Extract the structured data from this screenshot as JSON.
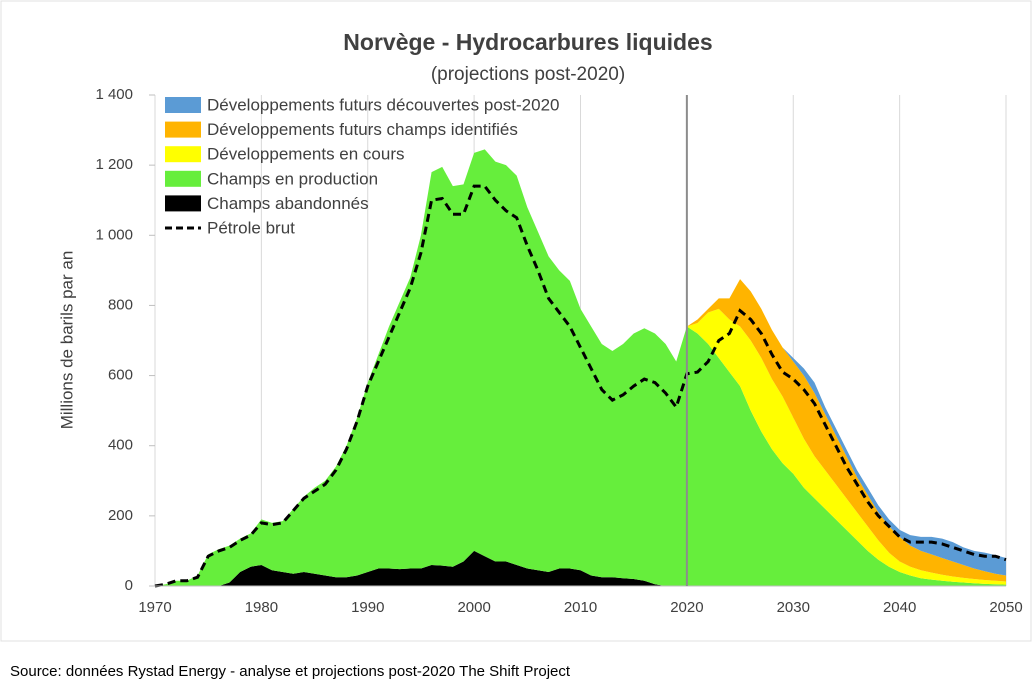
{
  "chart_data": {
    "type": "stacked_area",
    "title": "Norvège - Hydrocarbures liquides",
    "subtitle": "(projections post-2020)",
    "y_label": "Millions de barils par an",
    "source": "Source: données Rystad Energy - analyse et projections post-2020  The Shift Project",
    "xlim": [
      1970,
      2050
    ],
    "xticks": [
      1970,
      1980,
      1990,
      2000,
      2010,
      2020,
      2030,
      2040,
      2050
    ],
    "ylim": [
      0,
      1400
    ],
    "yticks": [
      0,
      200,
      400,
      600,
      800,
      {
        "value": 1000,
        "label": "1 000"
      },
      {
        "value": 1200,
        "label": "1 200"
      },
      {
        "value": 1400,
        "label": "1 400"
      }
    ],
    "grid": "x",
    "vline": 2020,
    "legend": "upper left",
    "x": [
      1970,
      1971,
      1972,
      1973,
      1974,
      1975,
      1976,
      1977,
      1978,
      1979,
      1980,
      1981,
      1982,
      1983,
      1984,
      1985,
      1986,
      1987,
      1988,
      1989,
      1990,
      1991,
      1992,
      1993,
      1994,
      1995,
      1996,
      1997,
      1998,
      1999,
      2000,
      2001,
      2002,
      2003,
      2004,
      2005,
      2006,
      2007,
      2008,
      2009,
      2010,
      2011,
      2012,
      2013,
      2014,
      2015,
      2016,
      2017,
      2018,
      2019,
      2020,
      2021,
      2022,
      2023,
      2024,
      2025,
      2026,
      2027,
      2028,
      2029,
      2030,
      2031,
      2032,
      2033,
      2034,
      2035,
      2036,
      2037,
      2038,
      2039,
      2040,
      2041,
      2042,
      2043,
      2044,
      2045,
      2046,
      2047,
      2048,
      2049,
      2050
    ],
    "series": [
      {
        "name": "Champs abandonnés",
        "color": "#000000",
        "values": [
          0,
          0,
          0,
          0,
          0,
          0,
          0,
          10,
          40,
          55,
          60,
          45,
          40,
          35,
          40,
          35,
          30,
          25,
          25,
          30,
          40,
          50,
          50,
          48,
          50,
          50,
          60,
          58,
          55,
          70,
          100,
          85,
          70,
          70,
          60,
          50,
          45,
          40,
          50,
          50,
          45,
          30,
          25,
          25,
          22,
          20,
          15,
          5,
          0,
          null,
          null,
          null,
          null,
          null,
          null,
          null,
          null,
          null,
          null,
          null,
          null,
          null,
          null,
          null,
          null,
          null,
          null,
          null,
          null,
          null,
          null,
          null,
          null,
          null,
          null,
          null,
          null,
          null,
          null,
          null,
          null
        ]
      },
      {
        "name": "Champs en production",
        "color": "#66ee3c",
        "values": [
          0,
          5,
          15,
          15,
          30,
          90,
          105,
          105,
          95,
          95,
          130,
          135,
          145,
          185,
          215,
          245,
          270,
          315,
          375,
          450,
          540,
          610,
          690,
          762,
          830,
          950,
          1120,
          1137,
          1085,
          1075,
          1135,
          1160,
          1140,
          1130,
          1110,
          1030,
          965,
          900,
          850,
          820,
          745,
          710,
          665,
          645,
          668,
          700,
          720,
          715,
          690,
          640,
          740,
          720,
          690,
          650,
          610,
          570,
          500,
          440,
          390,
          350,
          320,
          280,
          250,
          220,
          190,
          160,
          130,
          100,
          75,
          55,
          40,
          30,
          22,
          18,
          15,
          12,
          10,
          8,
          6,
          5,
          4
        ]
      },
      {
        "name": "Développements en cours",
        "color": "#ffff00",
        "values": [
          null,
          null,
          null,
          null,
          null,
          null,
          null,
          null,
          null,
          null,
          null,
          null,
          null,
          null,
          null,
          null,
          null,
          null,
          null,
          null,
          null,
          null,
          null,
          null,
          null,
          null,
          null,
          null,
          null,
          null,
          null,
          null,
          null,
          null,
          null,
          null,
          null,
          null,
          null,
          null,
          null,
          null,
          null,
          null,
          null,
          null,
          null,
          null,
          null,
          null,
          0,
          30,
          90,
          140,
          150,
          170,
          200,
          210,
          200,
          190,
          160,
          140,
          120,
          110,
          100,
          90,
          80,
          70,
          55,
          40,
          30,
          25,
          23,
          20,
          17,
          15,
          13,
          12,
          11,
          10,
          9
        ]
      },
      {
        "name": "Développements futurs champs identifiés",
        "color": "#ffb400",
        "values": [
          null,
          null,
          null,
          null,
          null,
          null,
          null,
          null,
          null,
          null,
          null,
          null,
          null,
          null,
          null,
          null,
          null,
          null,
          null,
          null,
          null,
          null,
          null,
          null,
          null,
          null,
          null,
          null,
          null,
          null,
          null,
          null,
          null,
          null,
          null,
          null,
          null,
          null,
          null,
          null,
          null,
          null,
          null,
          null,
          null,
          null,
          null,
          null,
          null,
          null,
          0,
          10,
          10,
          30,
          60,
          135,
          140,
          140,
          140,
          140,
          160,
          180,
          180,
          160,
          140,
          120,
          100,
          90,
          80,
          75,
          70,
          60,
          55,
          52,
          48,
          43,
          37,
          30,
          25,
          20,
          17
        ]
      },
      {
        "name": "Développements futurs découvertes post-2020",
        "color": "#5b9bd5",
        "values": [
          null,
          null,
          null,
          null,
          null,
          null,
          null,
          null,
          null,
          null,
          null,
          null,
          null,
          null,
          null,
          null,
          null,
          null,
          null,
          null,
          null,
          null,
          null,
          null,
          null,
          null,
          null,
          null,
          null,
          null,
          null,
          null,
          null,
          null,
          null,
          null,
          null,
          null,
          null,
          null,
          null,
          null,
          null,
          null,
          null,
          null,
          null,
          null,
          null,
          null,
          null,
          null,
          null,
          null,
          null,
          null,
          null,
          null,
          null,
          0,
          10,
          20,
          30,
          20,
          20,
          20,
          20,
          20,
          20,
          20,
          20,
          30,
          40,
          50,
          55,
          55,
          50,
          50,
          53,
          53,
          50
        ]
      }
    ],
    "line": {
      "name": "Pétrole brut",
      "color": "#000000",
      "dashed": true,
      "values": [
        0,
        5,
        15,
        15,
        25,
        85,
        100,
        110,
        130,
        145,
        180,
        175,
        180,
        215,
        250,
        270,
        290,
        330,
        390,
        470,
        570,
        640,
        710,
        780,
        850,
        950,
        1100,
        1105,
        1060,
        1060,
        1140,
        1140,
        1100,
        1070,
        1050,
        970,
        900,
        820,
        780,
        740,
        680,
        620,
        560,
        530,
        545,
        570,
        590,
        580,
        550,
        510,
        605,
        610,
        640,
        700,
        720,
        785,
        760,
        720,
        660,
        610,
        590,
        560,
        520,
        460,
        400,
        340,
        290,
        240,
        200,
        170,
        140,
        125,
        125,
        125,
        120,
        110,
        100,
        90,
        85,
        85,
        75
      ]
    }
  }
}
